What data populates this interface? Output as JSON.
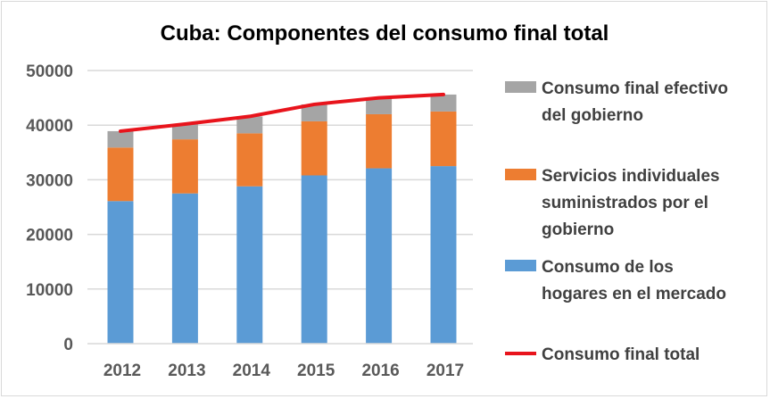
{
  "chart_data": {
    "type": "bar",
    "stacked": true,
    "title": "Cuba: Componentes del consumo final total",
    "xlabel": "",
    "ylabel": "",
    "categories": [
      "2012",
      "2013",
      "2014",
      "2015",
      "2016",
      "2017"
    ],
    "ylim": [
      0,
      50000
    ],
    "yticks": [
      "0",
      "10000",
      "20000",
      "30000",
      "40000",
      "50000"
    ],
    "grid": true,
    "legend_position": "right",
    "series": [
      {
        "name": "Consumo de los hogares en el mercado",
        "legend_lines": [
          "Consumo de los",
          "hogares en el mercado"
        ],
        "type": "bar",
        "color": "#5b9bd5",
        "values": [
          26100,
          27500,
          28800,
          30800,
          32100,
          32500
        ]
      },
      {
        "name": "Servicios individuales suministrados por el gobierno",
        "legend_lines": [
          "Servicios individuales",
          "suministrados por el",
          "gobierno"
        ],
        "type": "bar",
        "color": "#ed7d31",
        "values": [
          9800,
          9900,
          9700,
          9900,
          9900,
          10000
        ]
      },
      {
        "name": "Consumo final efectivo del gobierno",
        "legend_lines": [
          "Consumo final efectivo",
          "del gobierno"
        ],
        "type": "bar",
        "color": "#a5a5a5",
        "values": [
          3000,
          2800,
          3100,
          3100,
          3000,
          3100
        ]
      },
      {
        "name": "Consumo final total",
        "legend_lines": [
          "Consumo final total"
        ],
        "type": "line",
        "color": "#e8141c",
        "values": [
          38900,
          40200,
          41600,
          43800,
          45000,
          45600
        ]
      }
    ]
  }
}
